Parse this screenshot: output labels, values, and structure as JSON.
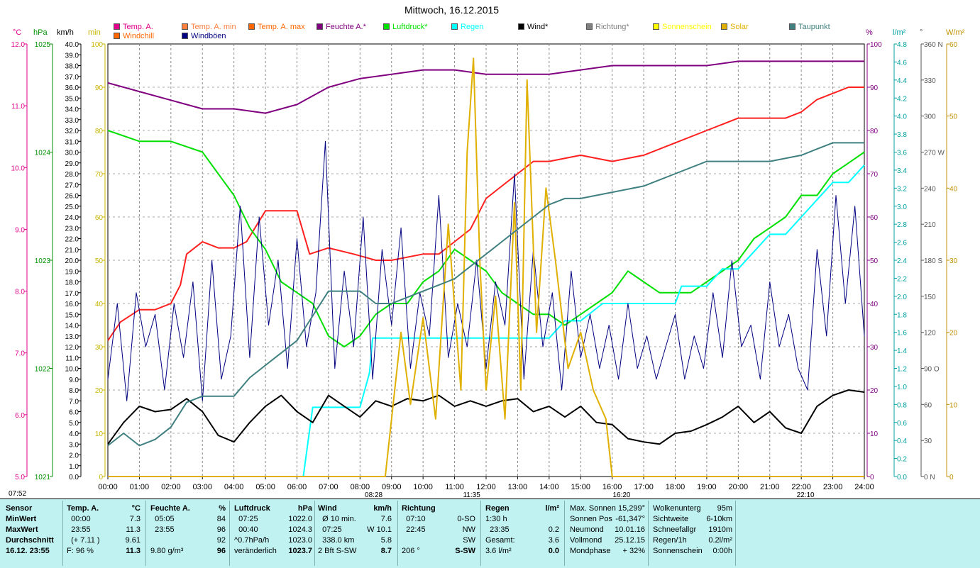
{
  "title": "Mittwoch, 16.12.2015",
  "legend": [
    {
      "label": "Temp. A.",
      "color": "#e0008a"
    },
    {
      "label": "Temp. A. min",
      "color": "#ff7f3f"
    },
    {
      "label": "Temp. A. max",
      "color": "#ff6600"
    },
    {
      "label": "Feuchte A.*",
      "color": "#800080"
    },
    {
      "label": "Luftdruck*",
      "color": "#00e000"
    },
    {
      "label": "Regen",
      "color": "#00ffff"
    },
    {
      "label": "Wind*",
      "color": "#000000"
    },
    {
      "label": "Richtung*",
      "color": "#808080"
    },
    {
      "label": "Sonnenschein",
      "color": "#ffff00"
    },
    {
      "label": "Solar",
      "color": "#e0b000"
    },
    {
      "label": "Taupunkt",
      "color": "#408080"
    },
    {
      "label": "Windchill",
      "color": "#ff6600"
    },
    {
      "label": "Windböen",
      "color": "#000080"
    }
  ],
  "axis_units": {
    "temp": "°C",
    "hpa": "hPa",
    "kmh": "km/h",
    "min": "min",
    "pct": "%",
    "rain": "l/m²",
    "deg": "°",
    "wm2": "W/m²"
  },
  "chart_data": {
    "type": "line",
    "x_ticks": [
      "00:00",
      "01:00",
      "02:00",
      "03:00",
      "04:00",
      "05:00",
      "06:00",
      "07:00",
      "08:00",
      "09:00",
      "10:00",
      "11:00",
      "12:00",
      "13:00",
      "14:00",
      "15:00",
      "16:00",
      "17:00",
      "18:00",
      "19:00",
      "20:00",
      "21:00",
      "22:00",
      "23:00",
      "24:00"
    ],
    "temp_ticks": [
      "12.0",
      "11.0",
      "10.0",
      "9.0",
      "8.0",
      "7.0",
      "6.0",
      "5.0"
    ],
    "hpa_ticks": [
      "1025",
      "1024",
      "1023",
      "1022",
      "1021"
    ],
    "kmh_ticks": [
      "40.0",
      "39.0",
      "38.0",
      "37.0",
      "36.0",
      "35.0",
      "34.0",
      "33.0",
      "32.0",
      "31.0",
      "30.0",
      "29.0",
      "28.0",
      "27.0",
      "26.0",
      "25.0",
      "24.0",
      "23.0",
      "22.0",
      "21.0",
      "20.0",
      "19.0",
      "18.0",
      "17.0",
      "16.0",
      "15.0",
      "14.0",
      "13.0",
      "12.0",
      "11.0",
      "10.0",
      "9.0",
      "8.0",
      "7.0",
      "6.0",
      "5.0",
      "4.0",
      "3.0",
      "2.0",
      "1.0",
      "0.0"
    ],
    "min_ticks": [
      "100",
      "90",
      "80",
      "70",
      "60",
      "50",
      "40",
      "30",
      "20",
      "10",
      "0"
    ],
    "pct_ticks": [
      "100",
      "90",
      "80",
      "70",
      "60",
      "50",
      "40",
      "30",
      "20",
      "10",
      "0"
    ],
    "rain_ticks": [
      "4.8",
      "4.6",
      "4.4",
      "4.2",
      "4.0",
      "3.8",
      "3.6",
      "3.4",
      "3.2",
      "3.0",
      "2.8",
      "2.6",
      "2.4",
      "2.2",
      "2.0",
      "1.8",
      "1.6",
      "1.4",
      "1.2",
      "1.0",
      "0.8",
      "0.6",
      "0.4",
      "0.2",
      "0.0"
    ],
    "deg_ticks": [
      "360 N",
      "330",
      "300",
      "270 W",
      "240",
      "210",
      "180 S",
      "150",
      "120",
      "90 O",
      "60",
      "30",
      "0 N"
    ],
    "wm2_ticks": [
      "60",
      "50",
      "40",
      "30",
      "20",
      "10",
      "0"
    ],
    "sun_events": [
      "07:52",
      "08:28",
      "11:35",
      "16:20",
      "22:10"
    ],
    "series": [
      {
        "name": "Temp. A.",
        "axis": "temp",
        "color": "#ff2020",
        "x": [
          0,
          0.4,
          1,
          1.5,
          2,
          2.3,
          2.5,
          3,
          3.5,
          4,
          4.4,
          5,
          5.5,
          6,
          6.4,
          7,
          7.8,
          8.5,
          9,
          10,
          10.5,
          11,
          11.5,
          12,
          12.5,
          13,
          13.5,
          14,
          15,
          16,
          17,
          18,
          19,
          20,
          21,
          21.5,
          22,
          22.5,
          23,
          23.5,
          24
        ],
        "y": [
          7.2,
          7.5,
          7.7,
          7.7,
          7.8,
          8.1,
          8.6,
          8.8,
          8.7,
          8.7,
          8.8,
          9.3,
          9.3,
          9.3,
          8.6,
          8.7,
          8.6,
          8.5,
          8.5,
          8.6,
          8.6,
          8.8,
          9.0,
          9.5,
          9.7,
          9.9,
          10.1,
          10.1,
          10.2,
          10.1,
          10.2,
          10.4,
          10.6,
          10.8,
          10.8,
          10.8,
          10.9,
          11.1,
          11.2,
          11.3,
          11.3
        ]
      },
      {
        "name": "Feuchte A.*",
        "axis": "pct",
        "color": "#800080",
        "x": [
          0,
          1,
          2,
          3,
          4,
          5,
          6,
          7,
          8,
          9,
          10,
          11,
          12,
          13,
          14,
          15,
          16,
          17,
          18,
          19,
          20,
          21,
          22,
          23,
          24
        ],
        "y": [
          91,
          89,
          87,
          85,
          85,
          84,
          86,
          90,
          92,
          93,
          94,
          94,
          93,
          93,
          93,
          94,
          95,
          95,
          95,
          95,
          96,
          96,
          96,
          96,
          96
        ]
      },
      {
        "name": "Luftdruck*",
        "axis": "hpa",
        "color": "#00e000",
        "x": [
          0,
          1,
          2,
          3,
          4,
          4.5,
          5,
          5.5,
          6,
          6.5,
          7,
          7.5,
          8,
          8.5,
          9,
          9.5,
          10,
          10.5,
          11,
          11.5,
          12,
          12.5,
          13,
          13.5,
          14,
          14.5,
          15,
          15.5,
          16,
          16.5,
          17,
          17.5,
          18,
          18.5,
          19,
          19.5,
          20,
          20.5,
          21,
          21.5,
          22,
          22.5,
          23,
          23.5,
          24
        ],
        "y": [
          1024.2,
          1024.1,
          1024.1,
          1024.0,
          1023.6,
          1023.3,
          1023.1,
          1022.8,
          1022.7,
          1022.6,
          1022.3,
          1022.2,
          1022.3,
          1022.5,
          1022.6,
          1022.6,
          1022.8,
          1022.9,
          1023.1,
          1023.0,
          1022.9,
          1022.7,
          1022.6,
          1022.5,
          1022.5,
          1022.4,
          1022.5,
          1022.6,
          1022.7,
          1022.9,
          1022.8,
          1022.7,
          1022.7,
          1022.7,
          1022.8,
          1022.9,
          1023.0,
          1023.2,
          1023.3,
          1023.4,
          1023.6,
          1023.6,
          1023.8,
          1023.9,
          1024.0
        ]
      },
      {
        "name": "Regen",
        "axis": "rain",
        "color": "#00ffff",
        "x": [
          0,
          6.2,
          6.35,
          6.5,
          6.7,
          7.0,
          7.5,
          8.0,
          8.3,
          8.4,
          8.6,
          9.0,
          10,
          11,
          12,
          13,
          14,
          14.5,
          15,
          15.7,
          16,
          17,
          18,
          18.2,
          19,
          19.5,
          20,
          21,
          21.5,
          22,
          22.5,
          23,
          23.5,
          24
        ],
        "y": [
          0,
          0,
          0.4,
          0.8,
          0.8,
          0.8,
          0.8,
          0.8,
          1.2,
          1.6,
          1.6,
          1.6,
          1.6,
          1.6,
          1.6,
          1.6,
          1.6,
          1.8,
          1.8,
          2.0,
          2.0,
          2.0,
          2.0,
          2.2,
          2.2,
          2.4,
          2.4,
          2.8,
          2.8,
          3.0,
          3.2,
          3.4,
          3.4,
          3.6
        ]
      },
      {
        "name": "Wind*",
        "axis": "kmh",
        "color": "#000000",
        "x": [
          0,
          0.5,
          1,
          1.5,
          2,
          2.5,
          3,
          3.5,
          4,
          4.5,
          5,
          5.5,
          6,
          6.5,
          7,
          7.5,
          8,
          8.5,
          9,
          9.5,
          10,
          10.5,
          11,
          11.5,
          12,
          12.5,
          13,
          13.5,
          14,
          14.5,
          15,
          15.5,
          16,
          16.5,
          17,
          17.5,
          18,
          18.5,
          19,
          19.5,
          20,
          20.5,
          21,
          21.5,
          22,
          22.5,
          23,
          23.5,
          24
        ],
        "y": [
          3.0,
          5.0,
          6.5,
          6.0,
          6.2,
          7.2,
          6.0,
          3.8,
          3.2,
          5.0,
          6.5,
          7.5,
          6.0,
          5.0,
          7.5,
          6.5,
          5.5,
          7.0,
          6.5,
          7.2,
          7.0,
          7.5,
          6.5,
          7.0,
          6.5,
          7.0,
          7.2,
          6.0,
          6.5,
          5.5,
          6.5,
          5.0,
          4.8,
          3.5,
          3.2,
          3.0,
          4.0,
          4.2,
          4.8,
          5.5,
          6.5,
          5.0,
          6.0,
          4.5,
          4.0,
          6.5,
          7.5,
          8.0,
          7.8
        ]
      },
      {
        "name": "Windböen",
        "axis": "kmh",
        "color": "#000080",
        "x": [
          0,
          0.3,
          0.6,
          0.9,
          1.2,
          1.5,
          1.8,
          2.1,
          2.4,
          2.7,
          3.0,
          3.3,
          3.6,
          3.9,
          4.2,
          4.5,
          4.8,
          5.1,
          5.4,
          5.7,
          6.0,
          6.3,
          6.6,
          6.9,
          7.2,
          7.5,
          7.8,
          8.1,
          8.4,
          8.7,
          9.0,
          9.3,
          9.6,
          9.9,
          10.2,
          10.5,
          10.8,
          11.1,
          11.4,
          11.7,
          12.0,
          12.3,
          12.6,
          12.9,
          13.2,
          13.5,
          13.8,
          14.1,
          14.4,
          14.7,
          15.0,
          15.3,
          15.6,
          15.9,
          16.2,
          16.5,
          16.8,
          17.1,
          17.4,
          17.7,
          18.0,
          18.3,
          18.6,
          18.9,
          19.2,
          19.5,
          19.8,
          20.1,
          20.4,
          20.7,
          21.0,
          21.3,
          21.6,
          21.9,
          22.2,
          22.5,
          22.8,
          23.1,
          23.4,
          23.7,
          24.0
        ],
        "y": [
          9,
          16,
          7,
          17,
          12,
          15,
          8,
          16,
          11,
          18,
          7,
          20,
          9,
          13,
          25,
          11,
          24,
          14,
          20,
          10,
          22,
          12,
          17,
          31,
          10,
          19,
          12,
          24,
          9,
          21,
          14,
          23,
          10,
          17,
          13,
          26,
          11,
          16,
          12,
          20,
          10,
          18,
          14,
          28,
          9,
          21,
          12,
          17,
          8,
          19,
          11,
          15,
          10,
          14,
          9,
          16,
          10,
          13,
          9,
          12,
          15,
          9,
          13,
          10,
          17,
          11,
          20,
          12,
          14,
          9,
          18,
          12,
          15,
          10,
          8,
          21,
          13,
          26,
          16,
          25,
          13
        ]
      },
      {
        "name": "Solar",
        "axis": "wm2",
        "color": "#e0b000",
        "x": [
          0,
          8.8,
          9.0,
          9.3,
          9.6,
          10.0,
          10.4,
          10.8,
          11.2,
          11.4,
          11.6,
          11.8,
          12.0,
          12.3,
          12.6,
          12.9,
          13.1,
          13.3,
          13.6,
          13.9,
          14.2,
          14.6,
          15.0,
          15.4,
          15.8,
          16.0,
          16.3,
          24.0
        ],
        "y": [
          0,
          0,
          8,
          20,
          10,
          22,
          8,
          35,
          12,
          45,
          58,
          30,
          12,
          25,
          8,
          38,
          12,
          55,
          20,
          40,
          30,
          15,
          20,
          12,
          8,
          0,
          0,
          0
        ]
      },
      {
        "name": "Taupunkt",
        "axis": "temp",
        "color": "#408080",
        "x": [
          0,
          0.5,
          1,
          1.5,
          2,
          2.5,
          3,
          3.5,
          4,
          4.5,
          5,
          5.5,
          6,
          6.5,
          7,
          7.5,
          8,
          8.5,
          9,
          9.5,
          10,
          10.5,
          11,
          11.5,
          12,
          12.5,
          13,
          13.5,
          14,
          14.5,
          15,
          16,
          17,
          18,
          19,
          20,
          21,
          22,
          22.5,
          23,
          24
        ],
        "y": [
          5.5,
          5.7,
          5.5,
          5.6,
          5.8,
          6.2,
          6.3,
          6.3,
          6.3,
          6.6,
          6.8,
          7.0,
          7.2,
          7.6,
          8.0,
          8.0,
          8.0,
          7.8,
          7.8,
          7.9,
          8.0,
          8.1,
          8.2,
          8.4,
          8.6,
          8.8,
          9.0,
          9.2,
          9.4,
          9.5,
          9.5,
          9.6,
          9.7,
          9.9,
          10.1,
          10.1,
          10.1,
          10.2,
          10.3,
          10.4,
          10.4
        ]
      }
    ]
  },
  "stats": {
    "sensor": {
      "head": "Sensor",
      "min": "MinWert",
      "max": "MaxWert",
      "avg": "Durchschnitt",
      "now": "16.12. 23:55"
    },
    "temp": {
      "head": "Temp. A.",
      "unit": "°C",
      "min_t": "00:00",
      "min_v": "7.3",
      "max_t": "23:55",
      "max_v": "11.3",
      "avg_t": "(+ 7.11 )",
      "avg_v": "9.61",
      "now_t": "F: 96 %",
      "now_v": "11.3"
    },
    "hum": {
      "head": "Feuchte A.",
      "unit": "%",
      "min_t": "05:05",
      "min_v": "84",
      "max_t": "23:55",
      "max_v": "96",
      "avg_v": "92",
      "now_t": "9.80 g/m³",
      "now_v": "96"
    },
    "press": {
      "head": "Luftdruck",
      "unit": "hPa",
      "min_t": "07:25",
      "min_v": "1022.0",
      "max_t": "00:40",
      "max_v": "1024.3",
      "avg_t": "^0.7hPa/h",
      "avg_v": "1023.0",
      "now_t": "veränderlich",
      "now_v": "1023.7"
    },
    "wind": {
      "head": "Wind",
      "unit": "km/h",
      "min_t": "Ø 10 min.",
      "min_v": "7.6",
      "max_t": "07:25",
      "max_v": "W 10.1",
      "avg_t": "338.0 km",
      "avg_v": "5.8",
      "now_t": "2 Bft S-SW",
      "now_v": "8.7"
    },
    "dir": {
      "head": "Richtung",
      "min_t": "07:10",
      "min_v": "0-SO",
      "max_t": "22:45",
      "max_v": "NW",
      "avg_v": "SW",
      "now_t": "206 °",
      "now_v": "S-SW"
    },
    "rain": {
      "head": "Regen",
      "unit": "l/m²",
      "min_t": "1:30 h",
      "max_t": "23:35",
      "max_v": "0.2",
      "avg_t": "Gesamt:",
      "avg_v": "3.6",
      "now_t": "3.6 l/m²",
      "now_v": "0.0"
    },
    "astro": [
      {
        "k": "Max. Sonnen",
        "v": "15,299°"
      },
      {
        "k": "Sonnen Pos",
        "v": "-61,347°"
      },
      {
        "k": "Neumond",
        "v": "10.01.16"
      },
      {
        "k": "Vollmond",
        "v": "25.12.15"
      },
      {
        "k": "Mondphase",
        "v": "+ 32%"
      }
    ],
    "misc": [
      {
        "k": "Wolkenunterg",
        "v": "95m"
      },
      {
        "k": "Sichtweite",
        "v": "6-10km"
      },
      {
        "k": "Schneefallgr",
        "v": "1910m"
      },
      {
        "k": "Regen/1h",
        "v": "0.2l/m²"
      },
      {
        "k": "Sonnenschein",
        "v": "0:00h"
      }
    ]
  }
}
